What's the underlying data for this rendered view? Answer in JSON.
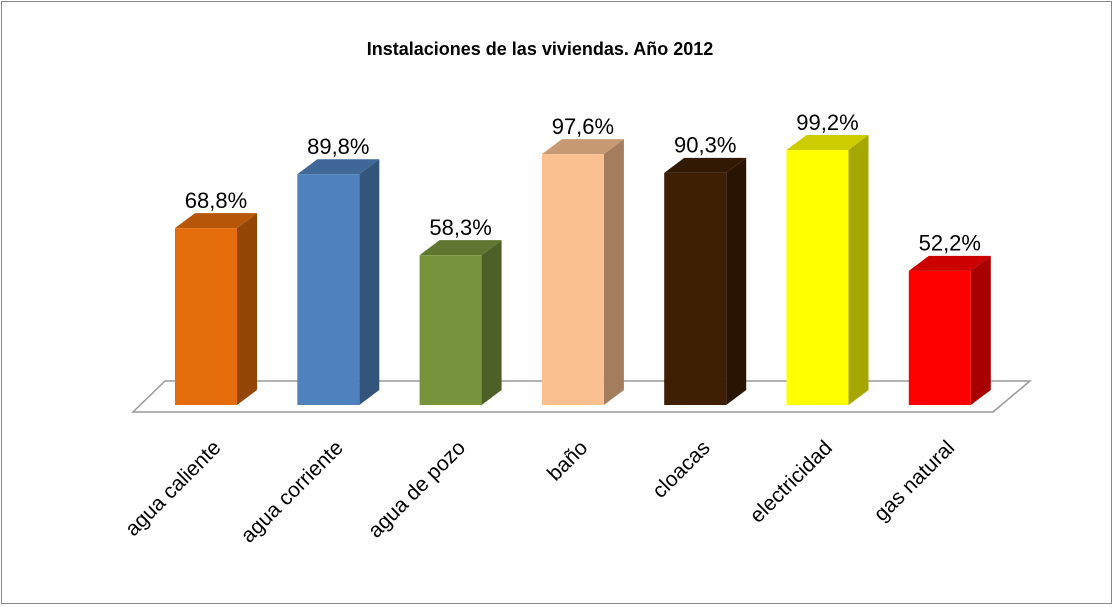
{
  "chart_data": {
    "type": "bar3d",
    "title": "Instalaciones de las viviendas. Año 2012",
    "categories": [
      "agua caliente",
      "agua corriente",
      "agua de pozo",
      "baño",
      "cloacas",
      "electricidad",
      "gas natural"
    ],
    "values": [
      68.8,
      89.8,
      58.3,
      97.6,
      90.3,
      99.2,
      52.2
    ],
    "value_labels": [
      "68,8%",
      "89,8%",
      "58,3%",
      "97,6%",
      "90,3%",
      "99,2%",
      "52,2%"
    ],
    "colors": [
      "#e46c0a",
      "#4f81bd",
      "#77933c",
      "#fac090",
      "#3f1f04",
      "#ffff00",
      "#ff0000"
    ]
  }
}
